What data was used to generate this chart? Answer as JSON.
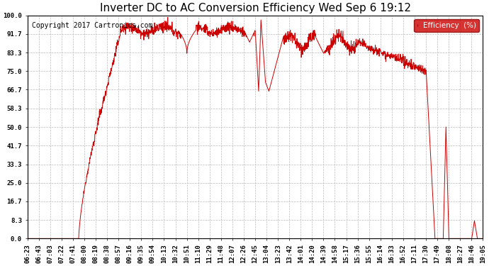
{
  "title": "Inverter DC to AC Conversion Efficiency Wed Sep 6 19:12",
  "copyright": "Copyright 2017 Cartronics.com",
  "legend_label": "Efficiency  (%)",
  "legend_bg": "#cc0000",
  "legend_fg": "#ffffff",
  "line_color": "#cc0000",
  "bg_color": "#ffffff",
  "plot_bg": "#ffffff",
  "yticks": [
    0.0,
    8.3,
    16.7,
    25.0,
    33.3,
    41.7,
    50.0,
    58.3,
    66.7,
    75.0,
    83.3,
    91.7,
    100.0
  ],
  "xtick_labels": [
    "06:23",
    "06:43",
    "07:03",
    "07:22",
    "07:41",
    "08:00",
    "08:19",
    "08:38",
    "08:57",
    "09:16",
    "09:35",
    "09:54",
    "10:13",
    "10:32",
    "10:51",
    "11:10",
    "11:29",
    "11:48",
    "12:07",
    "12:26",
    "12:45",
    "13:04",
    "13:23",
    "13:42",
    "14:01",
    "14:20",
    "14:39",
    "14:58",
    "15:17",
    "15:36",
    "15:55",
    "16:14",
    "16:33",
    "16:52",
    "17:11",
    "17:30",
    "17:49",
    "18:08",
    "18:27",
    "18:46",
    "19:05"
  ],
  "ylim": [
    0.0,
    100.0
  ],
  "grid_color": "#bbbbbb",
  "title_fontsize": 11,
  "axis_fontsize": 6.5,
  "copyright_fontsize": 7
}
